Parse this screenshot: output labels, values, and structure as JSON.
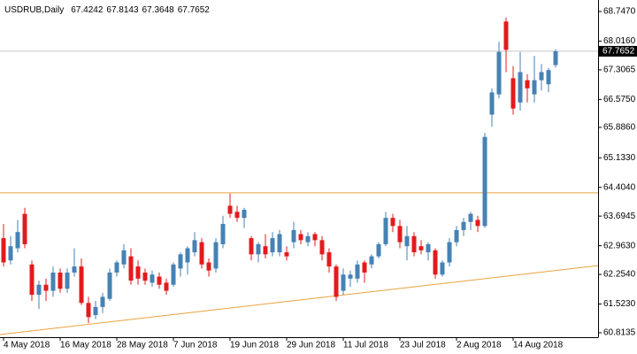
{
  "chart_data": {
    "type": "candlestick",
    "title": "USDRUB,Daily",
    "categories": [
      "4 May 2018",
      null,
      null,
      null,
      null,
      null,
      null,
      null,
      "16 May 2018",
      null,
      null,
      null,
      null,
      null,
      null,
      null,
      "28 May 2018",
      null,
      null,
      null,
      null,
      null,
      null,
      null,
      "7 Jun 2018",
      null,
      null,
      null,
      null,
      null,
      null,
      null,
      "19 Jun 2018",
      null,
      null,
      null,
      null,
      null,
      null,
      null,
      "29 Jun 2018",
      null,
      null,
      null,
      null,
      null,
      null,
      null,
      "11 Jul 2018",
      null,
      null,
      null,
      null,
      null,
      null,
      null,
      "23 Jul 2018",
      null,
      null,
      null,
      null,
      null,
      null,
      null,
      "2 Aug 2018",
      null,
      null,
      null,
      null,
      null,
      null,
      null,
      "14 Aug 2018",
      null,
      null,
      null,
      null,
      null,
      null
    ],
    "open": [
      63.15,
      62.6,
      62.9,
      63.75,
      62.5,
      61.75,
      62.0,
      61.85,
      62.3,
      61.9,
      62.3,
      62.45,
      61.55,
      61.25,
      61.45,
      61.65,
      62.3,
      62.5,
      62.7,
      62.45,
      62.3,
      62.05,
      62.2,
      62.05,
      62.0,
      62.4,
      62.55,
      62.8,
      63.05,
      62.55,
      62.4,
      63.0,
      63.95,
      63.8,
      63.65,
      63.15,
      62.75,
      62.95,
      62.8,
      62.8,
      62.8,
      63.05,
      63.25,
      63.05,
      63.25,
      63.1,
      62.8,
      62.45,
      61.85,
      62.15,
      62.15,
      62.55,
      62.5,
      62.7,
      63.0,
      63.65,
      63.45,
      62.95,
      63.2,
      62.95,
      62.8,
      62.85,
      62.25,
      62.55,
      63.05,
      63.35,
      63.55,
      63.6,
      63.45,
      66.2,
      66.7,
      68.5,
      67.1,
      66.5,
      67.05,
      66.7,
      67.05,
      66.95,
      67.4242
    ],
    "high": [
      63.5,
      63.2,
      63.6,
      63.9,
      62.6,
      62.1,
      62.15,
      62.45,
      62.4,
      62.4,
      62.9,
      62.65,
      61.7,
      61.6,
      61.8,
      62.4,
      62.6,
      63.0,
      62.9,
      62.6,
      62.4,
      62.35,
      62.3,
      62.15,
      62.55,
      62.8,
      62.95,
      63.3,
      63.15,
      62.65,
      63.15,
      63.7,
      64.25,
      63.95,
      63.9,
      63.2,
      63.05,
      63.25,
      63.3,
      63.35,
      62.95,
      63.55,
      63.35,
      63.3,
      63.3,
      63.2,
      62.9,
      62.5,
      62.4,
      62.35,
      62.6,
      62.6,
      62.75,
      63.05,
      63.8,
      63.75,
      63.6,
      63.45,
      63.3,
      63.1,
      63.05,
      62.9,
      62.6,
      63.15,
      63.45,
      63.65,
      63.8,
      63.7,
      65.75,
      66.85,
      68.0,
      68.6,
      67.4,
      67.75,
      67.2,
      67.65,
      67.45,
      67.35,
      67.8143
    ],
    "low": [
      62.45,
      62.5,
      62.8,
      62.9,
      61.6,
      61.4,
      61.6,
      61.7,
      61.8,
      61.8,
      62.2,
      61.5,
      61.05,
      61.15,
      61.3,
      61.6,
      62.2,
      62.4,
      62.0,
      62.0,
      62.0,
      61.95,
      61.9,
      61.75,
      61.95,
      62.2,
      62.25,
      62.7,
      62.4,
      62.2,
      62.3,
      62.9,
      63.65,
      63.55,
      63.4,
      62.6,
      62.55,
      62.65,
      62.7,
      62.7,
      62.6,
      62.9,
      63.0,
      62.95,
      62.95,
      62.6,
      62.3,
      61.6,
      61.75,
      61.95,
      62.05,
      62.05,
      62.4,
      62.65,
      62.95,
      63.3,
      62.9,
      62.6,
      62.7,
      62.75,
      62.6,
      62.15,
      62.2,
      62.45,
      62.95,
      63.2,
      63.35,
      63.3,
      63.4,
      65.9,
      66.6,
      67.25,
      66.2,
      66.3,
      66.5,
      66.5,
      66.8,
      66.75,
      67.3648
    ],
    "close": [
      62.55,
      62.95,
      63.3,
      63.0,
      61.75,
      62.0,
      61.85,
      62.3,
      61.9,
      62.3,
      62.45,
      61.55,
      61.2,
      61.45,
      61.7,
      62.3,
      62.55,
      62.85,
      62.1,
      62.15,
      62.1,
      62.25,
      62.0,
      61.85,
      62.5,
      62.75,
      62.9,
      63.1,
      62.5,
      62.35,
      63.05,
      63.5,
      63.75,
      63.65,
      63.85,
      62.75,
      63.0,
      62.75,
      63.15,
      63.25,
      62.7,
      63.35,
      63.1,
      63.2,
      63.1,
      62.75,
      62.45,
      61.7,
      62.25,
      62.25,
      62.5,
      62.3,
      62.7,
      63.0,
      63.65,
      63.45,
      63.05,
      63.2,
      62.8,
      62.85,
      63.0,
      62.25,
      62.55,
      63.05,
      63.35,
      63.55,
      63.75,
      63.45,
      65.65,
      66.75,
      67.75,
      67.8,
      66.35,
      67.25,
      66.85,
      67.05,
      67.25,
      67.3,
      67.7652
    ],
    "up_color": "#4682b4",
    "down_color": "#e41a1c",
    "ylim": [
      60.704,
      69.031
    ],
    "yticks": [
      {
        "value": 60.8135,
        "label": "60.8135"
      },
      {
        "value": 61.523,
        "label": "61.5230"
      },
      {
        "value": 62.254,
        "label": "62.2540"
      },
      {
        "value": 62.963,
        "label": "62.9630"
      },
      {
        "value": 63.6945,
        "label": "63.6945"
      },
      {
        "value": 64.404,
        "label": "64.4040"
      },
      {
        "value": 65.133,
        "label": "65.1330"
      },
      {
        "value": 65.886,
        "label": "65.8860"
      },
      {
        "value": 66.575,
        "label": "66.5750"
      },
      {
        "value": 67.3065,
        "label": "67.3065"
      },
      {
        "value": 68.016,
        "label": "68.0160"
      },
      {
        "value": 68.747,
        "label": "68.7470"
      }
    ],
    "level": {
      "value": 64.27,
      "color": "#e8a33d"
    },
    "trendline": {
      "x": [
        0,
        78
      ],
      "y": [
        60.78,
        62.35
      ],
      "color": "#e8a33d"
    },
    "price_line_color": "#c8c8c8"
  }
}
